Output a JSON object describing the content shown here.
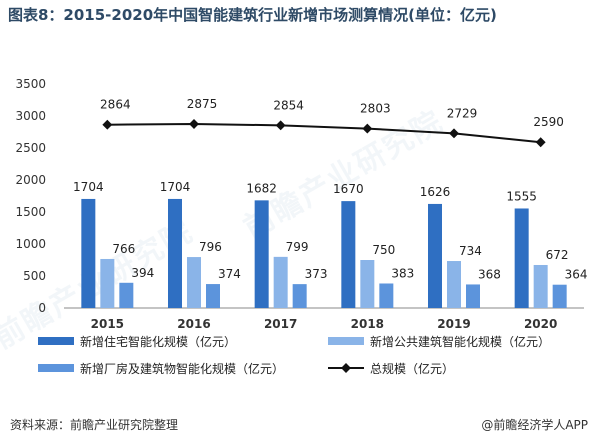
{
  "title": "图表8：2015-2020年中国智能建筑行业新增市场测算情况(单位：亿元)",
  "source": "资料来源：前瞻产业研究院整理",
  "brand": "@前瞻经济学人APP",
  "watermark": "前瞻产业研究院",
  "colors": {
    "residential": "#2f6fc2",
    "public": "#8ab4e8",
    "factory": "#5c94dc",
    "total": "#111111",
    "axis": "#888888",
    "grid": "#d9d9d9",
    "title": "#2e4a66"
  },
  "chart_data": {
    "type": "bar",
    "categories": [
      "2015",
      "2016",
      "2017",
      "2018",
      "2019",
      "2020"
    ],
    "ylim": [
      0,
      3500
    ],
    "yticks": [
      "0",
      "500",
      "1000",
      "1500",
      "2000",
      "2500",
      "3000",
      "3500"
    ],
    "grid": false,
    "legend_position": "bottom",
    "series": [
      {
        "name": "新增住宅智能化规模（亿元）",
        "type": "bar",
        "values": [
          1704,
          1704,
          1682,
          1670,
          1626,
          1555
        ]
      },
      {
        "name": "新增公共建筑智能化规模（亿元）",
        "type": "bar",
        "values": [
          766,
          796,
          799,
          750,
          734,
          672
        ]
      },
      {
        "name": "新增厂房及建筑物智能化规模（亿元）",
        "type": "bar",
        "values": [
          394,
          374,
          373,
          383,
          368,
          364
        ]
      },
      {
        "name": "总规模（亿元）",
        "type": "line",
        "values": [
          2864,
          2875,
          2854,
          2803,
          2729,
          2590
        ]
      }
    ]
  }
}
